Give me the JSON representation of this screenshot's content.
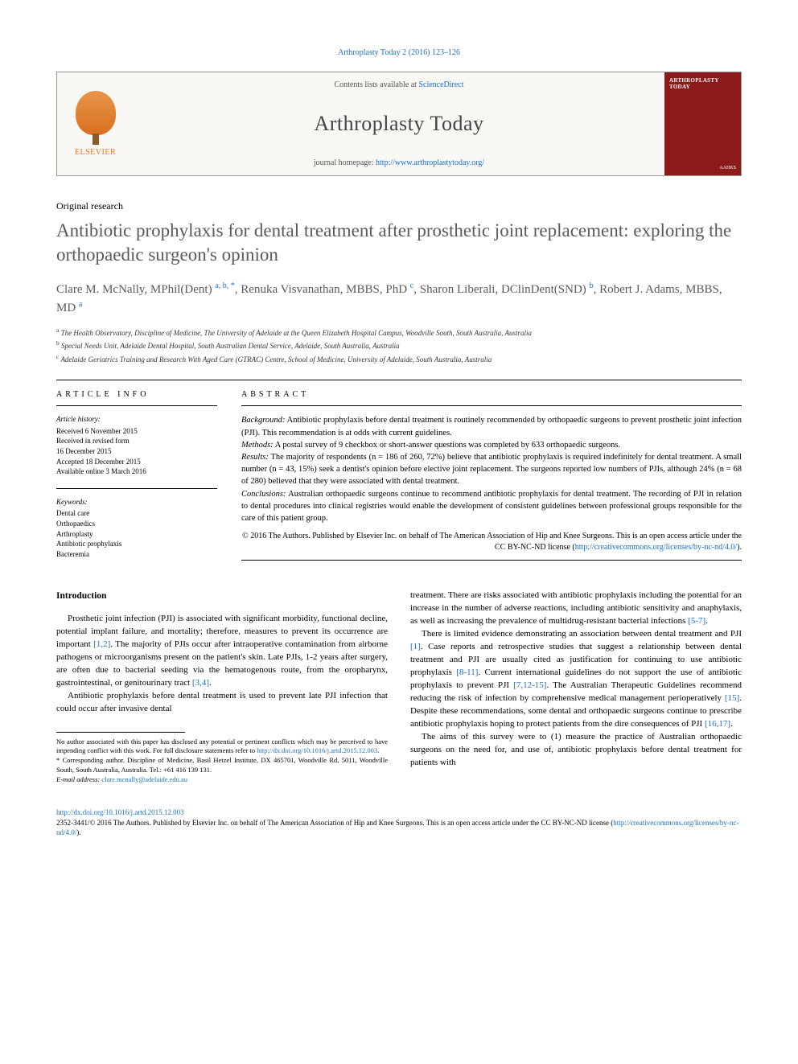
{
  "citation": "Arthroplasty Today 2 (2016) 123–126",
  "header": {
    "contents_prefix": "Contents lists available at ",
    "contents_link": "ScienceDirect",
    "journal": "Arthroplasty Today",
    "homepage_prefix": "journal homepage: ",
    "homepage_url": "http://www.arthroplastytoday.org/",
    "publisher": "ELSEVIER",
    "cover_label": "ARTHROPLASTY TODAY",
    "cover_soc": "AAHKS"
  },
  "article_type": "Original research",
  "title": "Antibiotic prophylaxis for dental treatment after prosthetic joint replacement: exploring the orthopaedic surgeon's opinion",
  "authors_html": "Clare M. McNally, MPhil(Dent) <sup>a, b, *</sup>, Renuka Visvanathan, MBBS, PhD <sup>c</sup>, Sharon Liberali, DClinDent(SND) <sup>b</sup>, Robert J. Adams, MBBS, MD <sup>a</sup>",
  "affiliations": {
    "a": "The Health Observatory, Discipline of Medicine, The University of Adelaide at the Queen Elizabeth Hospital Campus, Woodville South, South Australia, Australia",
    "b": "Special Needs Unit, Adelaide Dental Hospital, South Australian Dental Service, Adelaide, South Australia, Australia",
    "c": "Adelaide Geriatrics Training and Research With Aged Care (GTRAC) Centre, School of Medicine, University of Adelaide, South Australia, Australia"
  },
  "info": {
    "heading": "ARTICLE INFO",
    "history_label": "Article history:",
    "history": [
      "Received 6 November 2015",
      "Received in revised form",
      "16 December 2015",
      "Accepted 18 December 2015",
      "Available online 3 March 2016"
    ],
    "keywords_label": "Keywords:",
    "keywords": [
      "Dental care",
      "Orthopaedics",
      "Arthroplasty",
      "Antibiotic prophylaxis",
      "Bacteremia"
    ]
  },
  "abstract": {
    "heading": "ABSTRACT",
    "background_label": "Background:",
    "background": "Antibiotic prophylaxis before dental treatment is routinely recommended by orthopaedic surgeons to prevent prosthetic joint infection (PJI). This recommendation is at odds with current guidelines.",
    "methods_label": "Methods:",
    "methods": "A postal survey of 9 checkbox or short-answer questions was completed by 633 orthopaedic surgeons.",
    "results_label": "Results:",
    "results": "The majority of respondents (n = 186 of 260, 72%) believe that antibiotic prophylaxis is required indefinitely for dental treatment. A small number (n = 43, 15%) seek a dentist's opinion before elective joint replacement. The surgeons reported low numbers of PJIs, although 24% (n = 68 of 280) believed that they were associated with dental treatment.",
    "conclusions_label": "Conclusions:",
    "conclusions": "Australian orthopaedic surgeons continue to recommend antibiotic prophylaxis for dental treatment. The recording of PJI in relation to dental procedures into clinical registries would enable the development of consistent guidelines between professional groups responsible for the care of this patient group.",
    "copyright": "© 2016 The Authors. Published by Elsevier Inc. on behalf of The American Association of Hip and Knee Surgeons. This is an open access article under the CC BY-NC-ND license (",
    "cc_link": "http://creativecommons.org/licenses/by-nc-nd/4.0/",
    "copyright_close": ")."
  },
  "body": {
    "intro_head": "Introduction",
    "p1a": "Prosthetic joint infection (PJI) is associated with significant morbidity, functional decline, potential implant failure, and mortality; therefore, measures to prevent its occurrence are important ",
    "p1_ref1": "[1,2]",
    "p1b": ". The majority of PJIs occur after intraoperative contamination from airborne pathogens or microorganisms present on the patient's skin. Late PJIs, 1-2 years after surgery, are often due to bacterial seeding via the hematogenous route, from the oropharynx, gastrointestinal, or genitourinary tract ",
    "p1_ref2": "[3,4]",
    "p1c": ".",
    "p2a": "Antibiotic prophylaxis before dental treatment is used to prevent late PJI infection that could occur after invasive dental ",
    "p2b": "treatment. There are risks associated with antibiotic prophylaxis including the potential for an increase in the number of adverse reactions, including antibiotic sensitivity and anaphylaxis, as well as increasing the prevalence of multidrug-resistant bacterial infections ",
    "p2_ref": "[5-7]",
    "p2c": ".",
    "p3a": "There is limited evidence demonstrating an association between dental treatment and PJI ",
    "p3_ref1": "[1]",
    "p3b": ". Case reports and retrospective studies that suggest a relationship between dental treatment and PJI are usually cited as justification for continuing to use antibiotic prophylaxis ",
    "p3_ref2": "[8-11]",
    "p3c": ". Current international guidelines do not support the use of antibiotic prophylaxis to prevent PJI ",
    "p3_ref3": "[7,12-15]",
    "p3d": ". The Australian Therapeutic Guidelines recommend reducing the risk of infection by comprehensive medical management perioperatively ",
    "p3_ref4": "[15]",
    "p3e": ". Despite these recommendations, some dental and orthopaedic surgeons continue to prescribe antibiotic prophylaxis hoping to protect patients from the dire consequences of PJI ",
    "p3_ref5": "[16,17]",
    "p3f": ".",
    "p4": "The aims of this survey were to (1) measure the practice of Australian orthopaedic surgeons on the need for, and use of, antibiotic prophylaxis before dental treatment for patients with"
  },
  "footnotes": {
    "disclosure": "No author associated with this paper has disclosed any potential or pertinent conflicts which may be perceived to have impending conflict with this work. For full disclosure statements refer to ",
    "disclosure_link": "http://dx.doi.org/10.1016/j.artd.2015.12.003",
    "disclosure_end": ".",
    "corresponding": "* Corresponding author. Discipline of Medicine, Basil Hetzel Institute, DX 465701, Woodville Rd, 5011, Woodville South, South Australia, Australia. Tel.: +61 416 139 131.",
    "email_label": "E-mail address: ",
    "email": "clare.mcnally@adelaide.edu.au"
  },
  "bottom": {
    "doi": "http://dx.doi.org/10.1016/j.artd.2015.12.003",
    "issn_line": "2352-3441/© 2016 The Authors. Published by Elsevier Inc. on behalf of The American Association of Hip and Knee Surgeons. This is an open access article under the CC BY-NC-ND license (",
    "cc_link": "http://creativecommons.org/licenses/by-nc-nd/4.0/",
    "close": ")."
  },
  "colors": {
    "link": "#1a6fc4",
    "heading_gray": "#5a5a5a",
    "cover_red": "#8b1a1a",
    "publisher_orange": "#e8791a"
  }
}
